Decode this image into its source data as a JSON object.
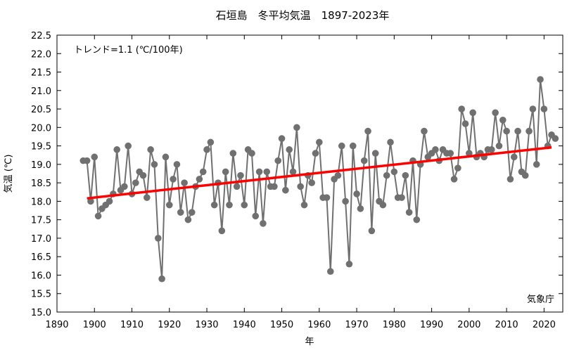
{
  "chart_data": {
    "type": "line",
    "title": "石垣島　冬平均気温　1897-2023年",
    "xlabel": "年",
    "ylabel": "気温 (℃)",
    "xlim": [
      1890,
      2025
    ],
    "ylim": [
      15.0,
      22.5
    ],
    "x_ticks": [
      1890,
      1900,
      1910,
      1920,
      1930,
      1940,
      1950,
      1960,
      1970,
      1980,
      1990,
      2000,
      2010,
      2020
    ],
    "y_ticks": [
      15.0,
      15.5,
      16.0,
      16.5,
      17.0,
      17.5,
      18.0,
      18.5,
      19.0,
      19.5,
      20.0,
      20.5,
      21.0,
      21.5,
      22.0,
      22.5
    ],
    "grid": false,
    "annotation_trend": "トレンド=1.1 (℃/100年)",
    "source_label": "気象庁",
    "colors": {
      "series": "#707070",
      "trend": "#ff0000",
      "axis": "#000000"
    },
    "series": [
      {
        "x": [
          1897,
          1898,
          1899,
          1900,
          1901,
          1902,
          1903,
          1904,
          1905,
          1906,
          1907,
          1908,
          1909,
          1910,
          1911,
          1912,
          1913,
          1914,
          1915,
          1916,
          1917,
          1918,
          1919,
          1920,
          1921,
          1922,
          1923,
          1924,
          1925,
          1926,
          1927,
          1928,
          1929,
          1930,
          1931,
          1932,
          1933,
          1934,
          1935,
          1936,
          1937,
          1938,
          1939,
          1940,
          1941,
          1942,
          1943,
          1944,
          1945,
          1946,
          1947,
          1948,
          1949,
          1950,
          1951,
          1952,
          1953,
          1954,
          1955,
          1956,
          1957,
          1958,
          1959,
          1960,
          1961,
          1962,
          1963,
          1964,
          1965,
          1966,
          1967,
          1968,
          1969,
          1970,
          1971,
          1972,
          1973,
          1974,
          1975,
          1976,
          1977,
          1978,
          1979,
          1980,
          1981,
          1982,
          1983,
          1984,
          1985,
          1986,
          1987,
          1988,
          1989,
          1990,
          1991,
          1992,
          1993,
          1994,
          1995,
          1996,
          1997,
          1998,
          1999,
          2000,
          2001,
          2002,
          2003,
          2004,
          2005,
          2006,
          2007,
          2008,
          2009,
          2010,
          2011,
          2012,
          2013,
          2014,
          2015,
          2016,
          2017,
          2018,
          2019,
          2020,
          2021,
          2022,
          2023
        ],
        "values": [
          19.1,
          19.1,
          18.0,
          19.2,
          17.6,
          17.8,
          17.9,
          18.0,
          18.2,
          19.4,
          18.3,
          18.4,
          19.5,
          18.2,
          18.5,
          18.8,
          18.7,
          18.1,
          19.4,
          19.0,
          17.0,
          15.9,
          19.2,
          17.9,
          18.6,
          19.0,
          17.7,
          18.5,
          17.5,
          17.7,
          18.4,
          18.6,
          18.8,
          19.4,
          19.6,
          17.9,
          18.5,
          17.2,
          18.8,
          17.9,
          19.3,
          18.4,
          18.7,
          17.9,
          19.4,
          19.3,
          17.6,
          18.8,
          17.4,
          18.8,
          18.4,
          18.4,
          19.1,
          19.7,
          18.3,
          19.4,
          18.8,
          20.0,
          18.4,
          17.9,
          18.7,
          18.5,
          19.3,
          19.6,
          18.1,
          18.1,
          16.1,
          18.6,
          18.7,
          19.5,
          18.0,
          16.3,
          19.5,
          18.2,
          17.8,
          19.1,
          19.9,
          17.2,
          19.3,
          18.0,
          17.9,
          18.7,
          19.6,
          18.8,
          18.1,
          18.1,
          18.7,
          17.7,
          19.1,
          17.5,
          19.0,
          19.9,
          19.2,
          19.3,
          19.4,
          19.1,
          19.4,
          19.3,
          19.3,
          18.6,
          18.9,
          20.5,
          20.1,
          19.3,
          20.4,
          19.2,
          19.3,
          19.2,
          19.4,
          19.4,
          20.4,
          19.5,
          20.2,
          19.9,
          18.6,
          19.2,
          19.9,
          18.8,
          18.7,
          19.9,
          20.5,
          19.0,
          21.3,
          20.5,
          19.5,
          19.8,
          19.7
        ]
      }
    ],
    "trend": {
      "x": [
        1898,
        2022
      ],
      "values": [
        18.08,
        19.46
      ]
    }
  }
}
